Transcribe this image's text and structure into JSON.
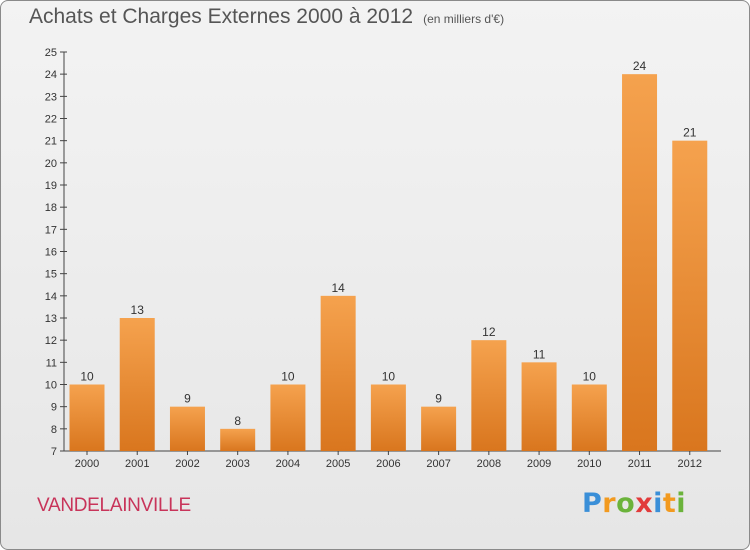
{
  "chart_data": {
    "type": "bar",
    "title": "Achats et Charges Externes 2000 à 2012",
    "subtitle": "(en milliers d'€)",
    "categories": [
      "2000",
      "2001",
      "2002",
      "2003",
      "2004",
      "2005",
      "2006",
      "2007",
      "2008",
      "2009",
      "2010",
      "2011",
      "2012"
    ],
    "values": [
      10,
      13,
      9,
      8,
      10,
      14,
      10,
      9,
      12,
      11,
      10,
      24,
      21
    ],
    "ylim": [
      7,
      25
    ],
    "yticks": [
      7,
      8,
      9,
      10,
      11,
      12,
      13,
      14,
      15,
      16,
      17,
      18,
      19,
      20,
      21,
      22,
      23,
      24,
      25
    ],
    "grid": false,
    "bar_color_light": "#f5a24e",
    "bar_color_dark": "#d9761e"
  },
  "commune": "VANDELAINVILLE",
  "logo": {
    "text": "Proxiti",
    "letters": [
      {
        "ch": "P",
        "color": "#3a8fd8"
      },
      {
        "ch": "r",
        "color": "#f29a1f"
      },
      {
        "ch": "o",
        "color": "#6bb33b"
      },
      {
        "ch": "x",
        "color": "#e23b3b"
      },
      {
        "ch": "i",
        "color": "#3a8fd8"
      },
      {
        "ch": "t",
        "color": "#f29a1f"
      },
      {
        "ch": "i",
        "color": "#6bb33b"
      }
    ]
  }
}
